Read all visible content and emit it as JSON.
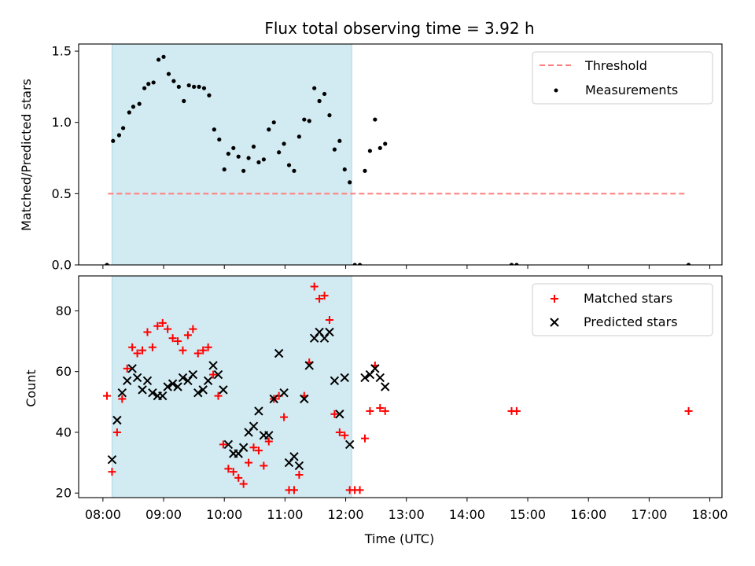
{
  "chart_data": [
    {
      "type": "scatter",
      "title": "Flux total observing time = 3.92 h",
      "ylabel": "Matched/Predicted stars",
      "xlabel": "",
      "ylim": [
        0,
        1.55
      ],
      "yticks": [
        0.0,
        0.5,
        1.0,
        1.5
      ],
      "ytick_labels": [
        "0.0",
        "0.5",
        "1.0",
        "1.5"
      ],
      "x_unit": "time of day (hours, UTC)",
      "xlim": [
        7.6,
        18.2
      ],
      "shaded_span": {
        "x0": "08:09",
        "x1": "12:06",
        "color": "#add8e6"
      },
      "legend": {
        "placement": "top-right"
      },
      "series": [
        {
          "name": "Threshold",
          "kind": "line",
          "style": "dashed",
          "color": "#ff7f7f",
          "points": [
            [
              "08:05",
              0.5
            ],
            [
              "17:37",
              0.5
            ]
          ]
        },
        {
          "name": "Measurements",
          "kind": "scatter",
          "marker": "dot",
          "color": "#000000",
          "points": [
            [
              "08:04",
              0.0
            ],
            [
              "08:10",
              0.87
            ],
            [
              "08:16",
              0.91
            ],
            [
              "08:20",
              0.96
            ],
            [
              "08:26",
              1.07
            ],
            [
              "08:30",
              1.11
            ],
            [
              "08:36",
              1.13
            ],
            [
              "08:41",
              1.24
            ],
            [
              "08:45",
              1.27
            ],
            [
              "08:50",
              1.28
            ],
            [
              "08:55",
              1.44
            ],
            [
              "09:00",
              1.46
            ],
            [
              "09:05",
              1.34
            ],
            [
              "09:10",
              1.29
            ],
            [
              "09:15",
              1.25
            ],
            [
              "09:20",
              1.15
            ],
            [
              "09:25",
              1.26
            ],
            [
              "09:30",
              1.25
            ],
            [
              "09:35",
              1.25
            ],
            [
              "09:40",
              1.24
            ],
            [
              "09:45",
              1.19
            ],
            [
              "09:50",
              0.95
            ],
            [
              "09:55",
              0.88
            ],
            [
              "10:00",
              0.67
            ],
            [
              "10:04",
              0.78
            ],
            [
              "10:09",
              0.82
            ],
            [
              "10:14",
              0.76
            ],
            [
              "10:19",
              0.66
            ],
            [
              "10:24",
              0.75
            ],
            [
              "10:29",
              0.83
            ],
            [
              "10:34",
              0.72
            ],
            [
              "10:39",
              0.74
            ],
            [
              "10:44",
              0.95
            ],
            [
              "10:49",
              1.0
            ],
            [
              "10:54",
              0.79
            ],
            [
              "10:59",
              0.85
            ],
            [
              "11:04",
              0.7
            ],
            [
              "11:09",
              0.66
            ],
            [
              "11:14",
              0.9
            ],
            [
              "11:19",
              1.02
            ],
            [
              "11:24",
              1.01
            ],
            [
              "11:29",
              1.24
            ],
            [
              "11:34",
              1.15
            ],
            [
              "11:39",
              1.2
            ],
            [
              "11:44",
              1.05
            ],
            [
              "11:49",
              0.81
            ],
            [
              "11:54",
              0.87
            ],
            [
              "11:59",
              0.67
            ],
            [
              "12:04",
              0.58
            ],
            [
              "12:09",
              0.0
            ],
            [
              "12:14",
              0.0
            ],
            [
              "12:19",
              0.66
            ],
            [
              "12:24",
              0.8
            ],
            [
              "12:29",
              1.02
            ],
            [
              "12:34",
              0.82
            ],
            [
              "12:39",
              0.85
            ],
            [
              "14:44",
              0.0
            ],
            [
              "14:49",
              0.0
            ],
            [
              "17:39",
              0.0
            ]
          ]
        }
      ]
    },
    {
      "type": "scatter",
      "title": "",
      "ylabel": "Count",
      "xlabel": "Time (UTC)",
      "ylim": [
        18.5,
        91.5
      ],
      "yticks": [
        20,
        40,
        60,
        80
      ],
      "ytick_labels": [
        "20",
        "40",
        "60",
        "80"
      ],
      "x_unit": "time of day (hours, UTC)",
      "xlim": [
        7.6,
        18.2
      ],
      "xticks": [
        "08:00",
        "09:00",
        "10:00",
        "11:00",
        "12:00",
        "13:00",
        "14:00",
        "15:00",
        "16:00",
        "17:00",
        "18:00"
      ],
      "shaded_span": {
        "x0": "08:09",
        "x1": "12:06",
        "color": "#add8e6"
      },
      "legend": {
        "placement": "top-right"
      },
      "series": [
        {
          "name": "Matched stars",
          "kind": "scatter",
          "marker": "plus",
          "color": "#ff0000",
          "points": [
            [
              "08:04",
              52
            ],
            [
              "08:09",
              27
            ],
            [
              "08:14",
              40
            ],
            [
              "08:19",
              51
            ],
            [
              "08:24",
              61
            ],
            [
              "08:29",
              68
            ],
            [
              "08:34",
              66
            ],
            [
              "08:39",
              67
            ],
            [
              "08:44",
              73
            ],
            [
              "08:49",
              68
            ],
            [
              "08:54",
              75
            ],
            [
              "08:59",
              76
            ],
            [
              "09:04",
              74
            ],
            [
              "09:09",
              71
            ],
            [
              "09:14",
              70
            ],
            [
              "09:19",
              67
            ],
            [
              "09:24",
              72
            ],
            [
              "09:29",
              74
            ],
            [
              "09:34",
              66
            ],
            [
              "09:39",
              67
            ],
            [
              "09:44",
              68
            ],
            [
              "09:49",
              59
            ],
            [
              "09:54",
              52
            ],
            [
              "09:59",
              36
            ],
            [
              "10:04",
              28
            ],
            [
              "10:09",
              27
            ],
            [
              "10:14",
              25
            ],
            [
              "10:19",
              23
            ],
            [
              "10:24",
              30
            ],
            [
              "10:29",
              35
            ],
            [
              "10:34",
              34
            ],
            [
              "10:39",
              29
            ],
            [
              "10:44",
              37
            ],
            [
              "10:49",
              51
            ],
            [
              "10:54",
              52
            ],
            [
              "10:59",
              45
            ],
            [
              "11:04",
              21
            ],
            [
              "11:09",
              21
            ],
            [
              "11:14",
              26
            ],
            [
              "11:19",
              52
            ],
            [
              "11:24",
              63
            ],
            [
              "11:29",
              88
            ],
            [
              "11:34",
              84
            ],
            [
              "11:39",
              85
            ],
            [
              "11:44",
              77
            ],
            [
              "11:49",
              46
            ],
            [
              "11:54",
              40
            ],
            [
              "11:59",
              39
            ],
            [
              "12:04",
              21
            ],
            [
              "12:09",
              21
            ],
            [
              "12:14",
              21
            ],
            [
              "12:19",
              38
            ],
            [
              "12:24",
              47
            ],
            [
              "12:29",
              62
            ],
            [
              "12:34",
              48
            ],
            [
              "12:39",
              47
            ],
            [
              "14:44",
              47
            ],
            [
              "14:49",
              47
            ],
            [
              "17:39",
              47
            ]
          ]
        },
        {
          "name": "Predicted stars",
          "kind": "scatter",
          "marker": "x",
          "color": "#000000",
          "points": [
            [
              "08:09",
              31
            ],
            [
              "08:14",
              44
            ],
            [
              "08:19",
              53
            ],
            [
              "08:24",
              57
            ],
            [
              "08:29",
              61
            ],
            [
              "08:34",
              58
            ],
            [
              "08:39",
              54
            ],
            [
              "08:44",
              57
            ],
            [
              "08:49",
              53
            ],
            [
              "08:54",
              52
            ],
            [
              "08:59",
              52
            ],
            [
              "09:04",
              55
            ],
            [
              "09:09",
              56
            ],
            [
              "09:14",
              55
            ],
            [
              "09:19",
              58
            ],
            [
              "09:24",
              57
            ],
            [
              "09:29",
              59
            ],
            [
              "09:34",
              53
            ],
            [
              "09:39",
              54
            ],
            [
              "09:44",
              57
            ],
            [
              "09:49",
              62
            ],
            [
              "09:54",
              59
            ],
            [
              "09:59",
              54
            ],
            [
              "10:04",
              36
            ],
            [
              "10:09",
              33
            ],
            [
              "10:14",
              33
            ],
            [
              "10:19",
              35
            ],
            [
              "10:24",
              40
            ],
            [
              "10:29",
              42
            ],
            [
              "10:34",
              47
            ],
            [
              "10:39",
              39
            ],
            [
              "10:44",
              39
            ],
            [
              "10:49",
              51
            ],
            [
              "10:54",
              66
            ],
            [
              "10:59",
              53
            ],
            [
              "11:04",
              30
            ],
            [
              "11:09",
              32
            ],
            [
              "11:14",
              29
            ],
            [
              "11:19",
              51
            ],
            [
              "11:24",
              62
            ],
            [
              "11:29",
              71
            ],
            [
              "11:34",
              73
            ],
            [
              "11:39",
              71
            ],
            [
              "11:44",
              73
            ],
            [
              "11:49",
              57
            ],
            [
              "11:54",
              46
            ],
            [
              "11:59",
              58
            ],
            [
              "12:04",
              36
            ],
            [
              "12:19",
              58
            ],
            [
              "12:24",
              59
            ],
            [
              "12:29",
              61
            ],
            [
              "12:34",
              58
            ],
            [
              "12:39",
              55
            ]
          ]
        }
      ]
    }
  ]
}
